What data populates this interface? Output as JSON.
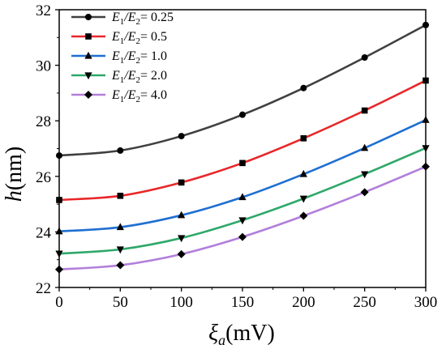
{
  "chart_data": {
    "type": "line",
    "xlabel": {
      "symbol": "ξ",
      "sub": "a",
      "unit": "(mV)"
    },
    "ylabel": {
      "symbol": "h",
      "unit": "(nm)"
    },
    "xlim": [
      0,
      300
    ],
    "ylim": [
      22,
      32
    ],
    "xticks": [
      0,
      50,
      100,
      150,
      200,
      250,
      300
    ],
    "yticks": [
      22,
      24,
      26,
      28,
      30,
      32
    ],
    "x": [
      0,
      50,
      100,
      150,
      200,
      250,
      300
    ],
    "grid": false,
    "legend_position": "top-left",
    "series": [
      {
        "name": "E1/E2= 0.25",
        "ratio": "0.25",
        "color": "#404040",
        "marker": "circle",
        "values": [
          26.75,
          26.93,
          27.45,
          28.22,
          29.18,
          30.28,
          31.45
        ]
      },
      {
        "name": "E1/E2= 0.5",
        "ratio": "0.5",
        "color": "#e8272a",
        "marker": "square",
        "values": [
          25.15,
          25.3,
          25.78,
          26.48,
          27.37,
          28.37,
          29.45
        ]
      },
      {
        "name": "E1/E2= 1.0",
        "ratio": "1.0",
        "color": "#1f6fd1",
        "marker": "triangle-up",
        "values": [
          24.02,
          24.17,
          24.6,
          25.25,
          26.08,
          27.02,
          28.03
        ]
      },
      {
        "name": "E1/E2= 2.0",
        "ratio": "2.0",
        "color": "#2fa86a",
        "marker": "triangle-down",
        "values": [
          23.22,
          23.37,
          23.78,
          24.42,
          25.2,
          26.08,
          27.02
        ]
      },
      {
        "name": "E1/E2= 4.0",
        "ratio": "4.0",
        "color": "#b27fdb",
        "marker": "diamond",
        "values": [
          22.65,
          22.8,
          23.2,
          23.82,
          24.58,
          25.43,
          26.35
        ]
      }
    ]
  }
}
